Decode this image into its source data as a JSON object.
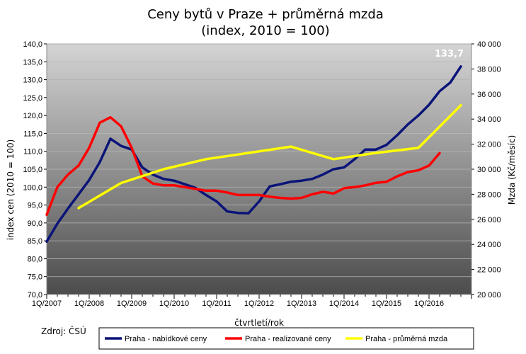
{
  "title_line1": "Ceny bytů v Praze + průměrná mzda",
  "title_line2": "(index, 2010 = 100)",
  "source_label": "Zdroj: ČSÚ",
  "chart_data": {
    "type": "line",
    "title": "Ceny bytů v Praze + průměrná mzda (index, 2010 = 100)",
    "xlabel": "čtvrtletí/rok",
    "ylabel": "index cen (2010 = 100)",
    "y2label": "Mzda (Kč/měsíc)",
    "ylim": [
      70,
      140
    ],
    "y2lim": [
      20000,
      40000
    ],
    "yticks": [
      "140,0",
      "135,0",
      "130,0",
      "125,0",
      "120,0",
      "115,0",
      "110,0",
      "105,0",
      "100,0",
      "95,0",
      "90,0",
      "85,0",
      "80,0",
      "75,0",
      "70,0"
    ],
    "y2ticks": [
      "40 000",
      "38 000",
      "36 000",
      "34 000",
      "32 000",
      "30 000",
      "28 000",
      "26 000",
      "24 000",
      "22 000",
      "20 000"
    ],
    "x_categories": [
      "1Q/2007",
      "1Q/2008",
      "1Q/2009",
      "1Q/2010",
      "1Q/2011",
      "1Q/2012",
      "1Q/2013",
      "1Q/2014",
      "1Q/2015",
      "1Q/2016"
    ],
    "grid": true,
    "legend_position": "bottom",
    "annotation": "133,7",
    "series": [
      {
        "name": "Praha - nabídkové ceny",
        "axis": "left",
        "color": "#0a1478",
        "points": [
          [
            2007.0,
            84.8
          ],
          [
            2007.25,
            89.8
          ],
          [
            2007.5,
            94.0
          ],
          [
            2007.75,
            98.0
          ],
          [
            2008.0,
            102.0
          ],
          [
            2008.25,
            107.0
          ],
          [
            2008.5,
            113.5
          ],
          [
            2008.75,
            111.5
          ],
          [
            2009.0,
            110.5
          ],
          [
            2009.25,
            105.5
          ],
          [
            2009.5,
            103.5
          ],
          [
            2009.75,
            102.3
          ],
          [
            2010.0,
            101.8
          ],
          [
            2010.25,
            100.8
          ],
          [
            2010.5,
            99.8
          ],
          [
            2010.75,
            97.8
          ],
          [
            2011.0,
            96.0
          ],
          [
            2011.25,
            93.2
          ],
          [
            2011.5,
            92.8
          ],
          [
            2011.75,
            92.7
          ],
          [
            2012.0,
            96.0
          ],
          [
            2012.25,
            100.2
          ],
          [
            2012.5,
            100.8
          ],
          [
            2012.75,
            101.5
          ],
          [
            2013.0,
            101.8
          ],
          [
            2013.25,
            102.3
          ],
          [
            2013.5,
            103.5
          ],
          [
            2013.75,
            105.0
          ],
          [
            2014.0,
            105.5
          ],
          [
            2014.25,
            107.8
          ],
          [
            2014.5,
            110.5
          ],
          [
            2014.75,
            110.5
          ],
          [
            2015.0,
            111.8
          ],
          [
            2015.25,
            114.5
          ],
          [
            2015.5,
            117.5
          ],
          [
            2015.75,
            120.0
          ],
          [
            2016.0,
            123.0
          ],
          [
            2016.25,
            126.8
          ],
          [
            2016.5,
            129.2
          ],
          [
            2016.75,
            133.7
          ]
        ]
      },
      {
        "name": "Praha - realizované ceny",
        "axis": "left",
        "color": "#ff0000",
        "points": [
          [
            2007.0,
            92.3
          ],
          [
            2007.25,
            100.0
          ],
          [
            2007.5,
            103.5
          ],
          [
            2007.75,
            106.0
          ],
          [
            2008.0,
            111.0
          ],
          [
            2008.25,
            118.0
          ],
          [
            2008.5,
            119.5
          ],
          [
            2008.75,
            117.0
          ],
          [
            2009.0,
            111.0
          ],
          [
            2009.25,
            103.0
          ],
          [
            2009.5,
            101.0
          ],
          [
            2009.75,
            100.5
          ],
          [
            2010.0,
            100.5
          ],
          [
            2010.25,
            100.0
          ],
          [
            2010.5,
            99.5
          ],
          [
            2010.75,
            99.0
          ],
          [
            2011.0,
            99.0
          ],
          [
            2011.25,
            98.5
          ],
          [
            2011.5,
            97.8
          ],
          [
            2011.75,
            97.8
          ],
          [
            2012.0,
            97.8
          ],
          [
            2012.25,
            97.3
          ],
          [
            2012.5,
            97.0
          ],
          [
            2012.75,
            96.8
          ],
          [
            2013.0,
            97.0
          ],
          [
            2013.25,
            98.0
          ],
          [
            2013.5,
            98.7
          ],
          [
            2013.75,
            98.2
          ],
          [
            2014.0,
            99.7
          ],
          [
            2014.25,
            100.0
          ],
          [
            2014.5,
            100.5
          ],
          [
            2014.75,
            101.2
          ],
          [
            2015.0,
            101.5
          ],
          [
            2015.25,
            103.0
          ],
          [
            2015.5,
            104.2
          ],
          [
            2015.75,
            104.7
          ],
          [
            2016.0,
            106.0
          ],
          [
            2016.25,
            109.5
          ]
        ]
      },
      {
        "name": "Praha - průměrná mzda",
        "axis": "right",
        "color": "#ffff00",
        "points": [
          [
            2007.75,
            26.9
          ],
          [
            2008.75,
            28.9
          ],
          [
            2009.75,
            30.0
          ],
          [
            2010.75,
            30.8
          ],
          [
            2011.75,
            31.3
          ],
          [
            2012.75,
            31.8
          ],
          [
            2013.75,
            30.8
          ],
          [
            2014.75,
            31.3
          ],
          [
            2015.75,
            31.7
          ],
          [
            2016.75,
            35.1
          ]
        ]
      }
    ]
  }
}
